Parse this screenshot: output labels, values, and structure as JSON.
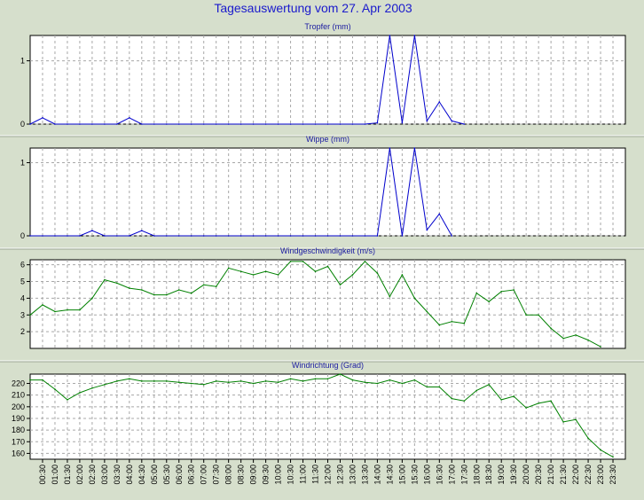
{
  "title": "Tagesauswertung vom 27. Apr 2003",
  "x_labels": [
    "00:30",
    "01:00",
    "01:30",
    "02:00",
    "02:30",
    "03:00",
    "03:30",
    "04:00",
    "04:30",
    "05:00",
    "05:30",
    "06:00",
    "06:30",
    "07:00",
    "07:30",
    "08:00",
    "08:30",
    "09:00",
    "09:30",
    "10:00",
    "10:30",
    "11:00",
    "11:30",
    "12:00",
    "12:30",
    "13:00",
    "13:30",
    "14:00",
    "14:30",
    "15:00",
    "15:30",
    "16:00",
    "16:30",
    "17:00",
    "17:30",
    "18:00",
    "18:30",
    "19:00",
    "19:30",
    "20:00",
    "20:30",
    "21:00",
    "21:30",
    "22:00",
    "22:30",
    "23:00",
    "23:30"
  ],
  "colors": {
    "background": "#d6dfcc",
    "plot_bg": "#ffffff",
    "grid": "#a8a8a8",
    "title": "#1a1acc",
    "rain_line": "#0000cc",
    "wind_line": "#008000"
  },
  "chart_data": [
    {
      "type": "line",
      "title": "Tropfer (mm)",
      "ylim": [
        0,
        1.4
      ],
      "yticks": [
        0,
        1
      ],
      "grid": true,
      "x": [
        "00:00",
        "00:30",
        "01:00",
        "01:30",
        "02:00",
        "02:30",
        "03:00",
        "03:30",
        "04:00",
        "04:30",
        "05:00",
        "05:30",
        "06:00",
        "06:30",
        "07:00",
        "07:30",
        "08:00",
        "08:30",
        "09:00",
        "09:30",
        "10:00",
        "10:30",
        "11:00",
        "11:30",
        "12:00",
        "12:30",
        "13:00",
        "13:30",
        "14:00",
        "14:30",
        "15:00",
        "15:30",
        "16:00",
        "16:30",
        "17:00",
        "17:30"
      ],
      "values": [
        0,
        0.1,
        0,
        0,
        0,
        0,
        0,
        0,
        0.1,
        0,
        0,
        0,
        0,
        0,
        0,
        0,
        0,
        0,
        0,
        0,
        0,
        0,
        0,
        0,
        0,
        0,
        0,
        0,
        0.02,
        1.4,
        0.02,
        1.4,
        0.05,
        0.35,
        0.05,
        0
      ]
    },
    {
      "type": "line",
      "title": "Wippe (mm)",
      "ylim": [
        0,
        1.2
      ],
      "yticks": [
        0,
        1
      ],
      "grid": true,
      "x": [
        "00:00",
        "00:30",
        "01:00",
        "01:30",
        "02:00",
        "02:30",
        "03:00",
        "03:30",
        "04:00",
        "04:30",
        "05:00",
        "05:30",
        "06:00",
        "06:30",
        "07:00",
        "07:30",
        "08:00",
        "08:30",
        "09:00",
        "09:30",
        "10:00",
        "10:30",
        "11:00",
        "11:30",
        "12:00",
        "12:30",
        "13:00",
        "13:30",
        "14:00",
        "14:30",
        "15:00",
        "15:30",
        "16:00",
        "16:30",
        "17:00"
      ],
      "values": [
        0,
        0,
        0,
        0,
        0,
        0.07,
        0,
        0,
        0,
        0.07,
        0,
        0,
        0,
        0,
        0,
        0,
        0,
        0,
        0,
        0,
        0,
        0,
        0,
        0,
        0,
        0,
        0,
        0,
        0,
        1.2,
        0,
        1.2,
        0.08,
        0.3,
        0
      ]
    },
    {
      "type": "line",
      "title": "Windgeschwindigkeit (m/s)",
      "ylim": [
        1,
        6.3
      ],
      "yticks": [
        2,
        3,
        4,
        5,
        6
      ],
      "grid": true,
      "x": [
        "00:00",
        "00:30",
        "01:00",
        "01:30",
        "02:00",
        "02:30",
        "03:00",
        "03:30",
        "04:00",
        "04:30",
        "05:00",
        "05:30",
        "06:00",
        "06:30",
        "07:00",
        "07:30",
        "08:00",
        "08:30",
        "09:00",
        "09:30",
        "10:00",
        "10:30",
        "11:00",
        "11:30",
        "12:00",
        "12:30",
        "13:00",
        "13:30",
        "14:00",
        "14:30",
        "15:00",
        "15:30",
        "16:00",
        "16:30",
        "17:00",
        "17:30",
        "18:00",
        "18:30",
        "19:00",
        "19:30",
        "20:00",
        "20:30",
        "21:00",
        "21:30",
        "22:00",
        "22:30",
        "23:00"
      ],
      "values": [
        3.0,
        3.6,
        3.2,
        3.3,
        3.3,
        4.0,
        5.1,
        4.9,
        4.6,
        4.5,
        4.2,
        4.2,
        4.5,
        4.3,
        4.8,
        4.7,
        5.8,
        5.6,
        5.4,
        5.6,
        5.4,
        6.2,
        6.2,
        5.6,
        5.9,
        4.8,
        5.4,
        6.2,
        5.5,
        4.1,
        5.4,
        4.0,
        3.2,
        2.4,
        2.6,
        2.5,
        4.3,
        3.8,
        4.4,
        4.5,
        3.0,
        3.0,
        2.2,
        1.6,
        1.8,
        1.5,
        1.1
      ]
    },
    {
      "type": "line",
      "title": "Windrichtung (Grad)",
      "ylim": [
        155,
        228
      ],
      "yticks": [
        160,
        170,
        180,
        190,
        200,
        210,
        220
      ],
      "grid": true,
      "x": [
        "00:00",
        "00:30",
        "01:00",
        "01:30",
        "02:00",
        "02:30",
        "03:00",
        "03:30",
        "04:00",
        "04:30",
        "05:00",
        "05:30",
        "06:00",
        "06:30",
        "07:00",
        "07:30",
        "08:00",
        "08:30",
        "09:00",
        "09:30",
        "10:00",
        "10:30",
        "11:00",
        "11:30",
        "12:00",
        "12:30",
        "13:00",
        "13:30",
        "14:00",
        "14:30",
        "15:00",
        "15:30",
        "16:00",
        "16:30",
        "17:00",
        "17:30",
        "18:00",
        "18:30",
        "19:00",
        "19:30",
        "20:00",
        "20:30",
        "21:00",
        "21:30",
        "22:00",
        "22:30",
        "23:00",
        "23:30"
      ],
      "values": [
        223,
        223,
        215,
        206,
        212,
        216,
        219,
        222,
        224,
        222,
        222,
        222,
        221,
        220,
        219,
        222,
        221,
        222,
        220,
        222,
        221,
        224,
        222,
        224,
        224,
        228,
        223,
        221,
        220,
        223,
        220,
        223,
        217,
        217,
        207,
        205,
        214,
        219,
        206,
        209,
        199,
        203,
        205,
        187,
        189,
        173,
        163,
        157
      ]
    }
  ]
}
